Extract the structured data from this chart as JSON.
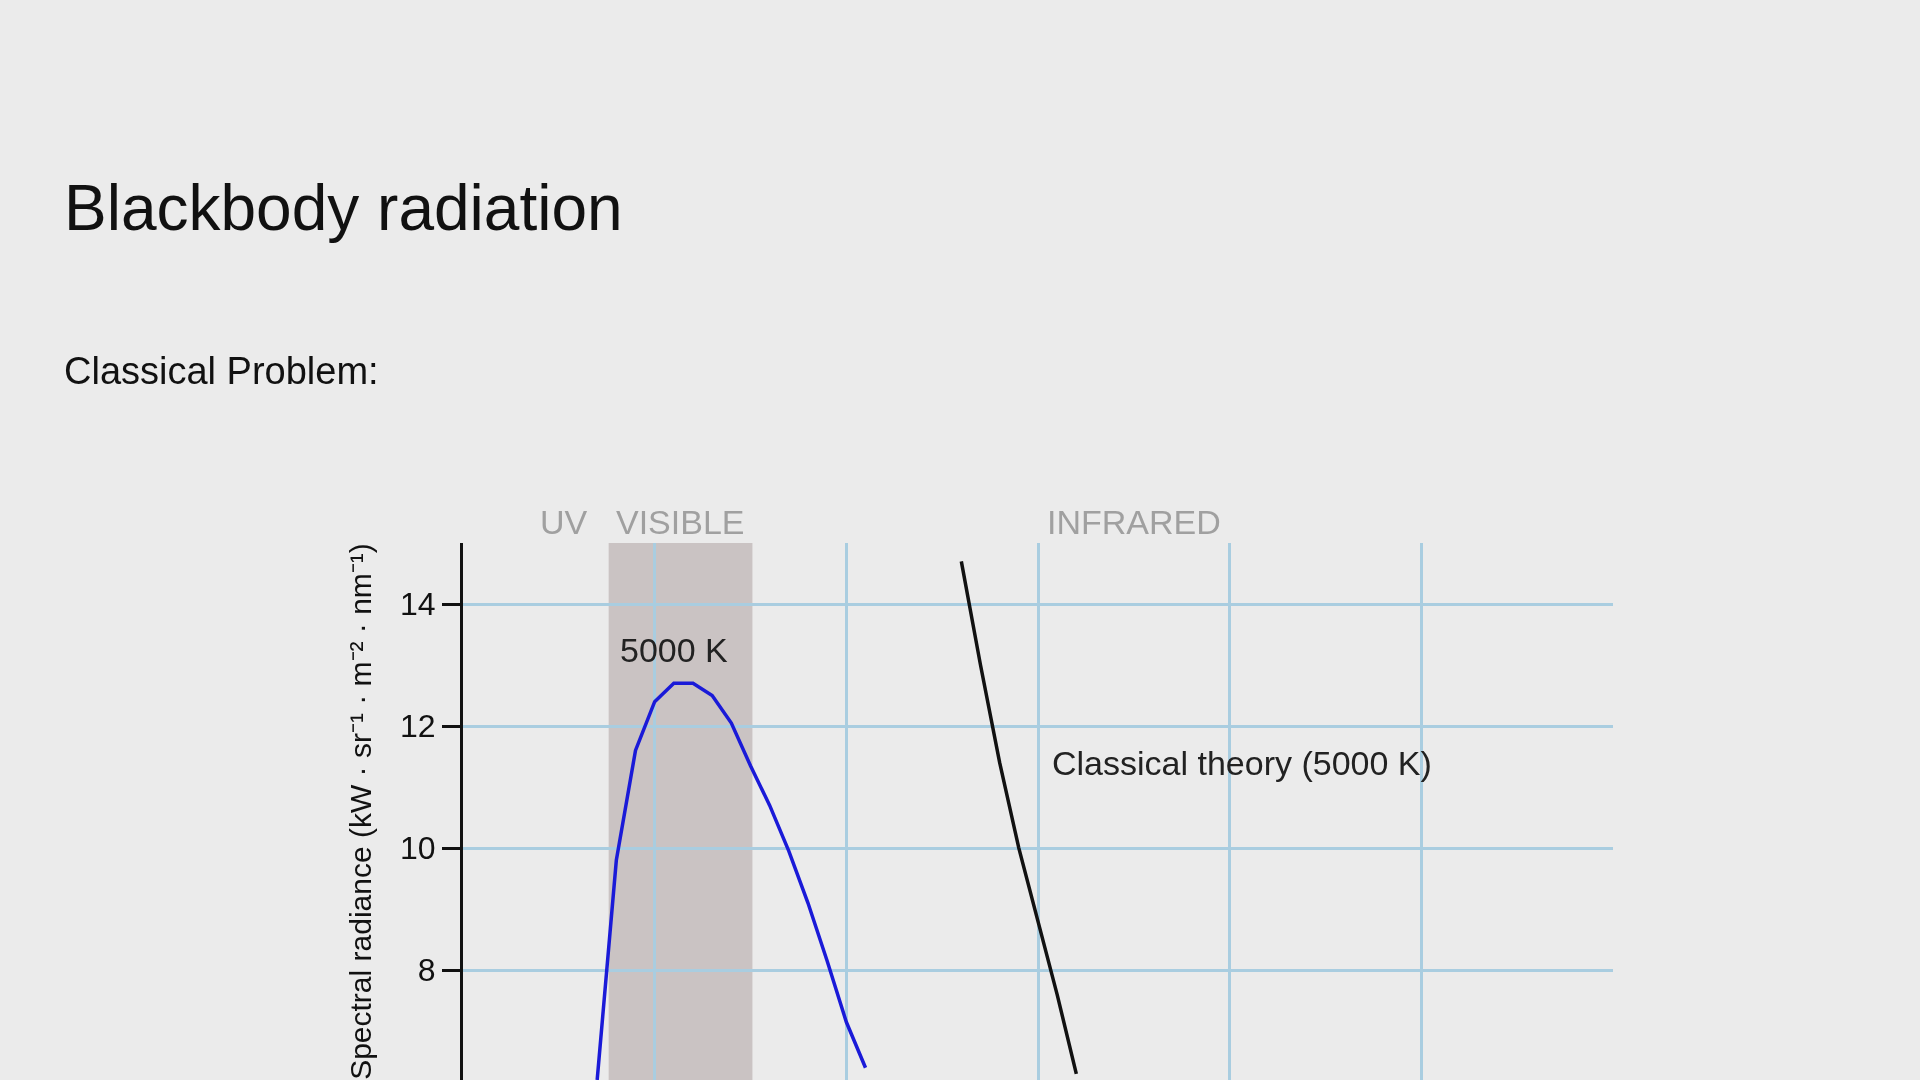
{
  "chart_data": {
    "type": "line",
    "title": "Blackbody radiation",
    "subtitle": "Classical Problem:",
    "ylabel": "Spectral radiance (kW · sr⁻¹ · m⁻² · nm⁻¹)",
    "categories": [
      null,
      null,
      null,
      null,
      null,
      null,
      null,
      null,
      null,
      null,
      null,
      null,
      null,
      null,
      null,
      null,
      null,
      null,
      null,
      null,
      null,
      null,
      null,
      null,
      null,
      null,
      null,
      null,
      null,
      null,
      null,
      null,
      null,
      null,
      null,
      null,
      null,
      null,
      null,
      null,
      null,
      null,
      null,
      null,
      null,
      null,
      null,
      null,
      null,
      null,
      null,
      null,
      null,
      null,
      null,
      null,
      null,
      null,
      null,
      null,
      null
    ],
    "ylim": [
      6.2,
      15
    ],
    "yticks": [
      8,
      10,
      12,
      14
    ],
    "tick_labels": "y",
    "grid": true,
    "legend": false,
    "line_style": "solid",
    "series": [
      {
        "name": "5000 K",
        "color": "#1a1ad8",
        "values": [
          null,
          null,
          null,
          null,
          null,
          null,
          null,
          6.2,
          9.8,
          11.6,
          12.4,
          12.7,
          12.7,
          12.5,
          12.05,
          11.35,
          10.7,
          9.95,
          9.1,
          8.15,
          7.15,
          6.4,
          null,
          null,
          null,
          null,
          null,
          null,
          null,
          null,
          null,
          null,
          null,
          null,
          null,
          null,
          null,
          null,
          null,
          null,
          null,
          null,
          null,
          null,
          null,
          null,
          null,
          null,
          null,
          null,
          null,
          null,
          null,
          null,
          null,
          null,
          null,
          null,
          null,
          null,
          null
        ]
      },
      {
        "name": "Classical theory (5000 K)",
        "color": "#111111",
        "values": [
          null,
          null,
          null,
          null,
          null,
          null,
          null,
          null,
          null,
          null,
          null,
          null,
          null,
          null,
          null,
          null,
          null,
          null,
          null,
          null,
          null,
          null,
          null,
          null,
          null,
          null,
          14.7,
          13.0,
          11.4,
          10.0,
          8.8,
          7.6,
          6.3,
          null,
          null,
          null,
          null,
          null,
          null,
          null,
          null,
          null,
          null,
          null,
          null,
          null,
          null,
          null,
          null,
          null,
          null,
          null,
          null,
          null,
          null,
          null,
          null,
          null,
          null,
          null,
          null
        ]
      }
    ],
    "annotations": [
      "UV",
      "VISIBLE",
      "INFRARED"
    ]
  }
}
